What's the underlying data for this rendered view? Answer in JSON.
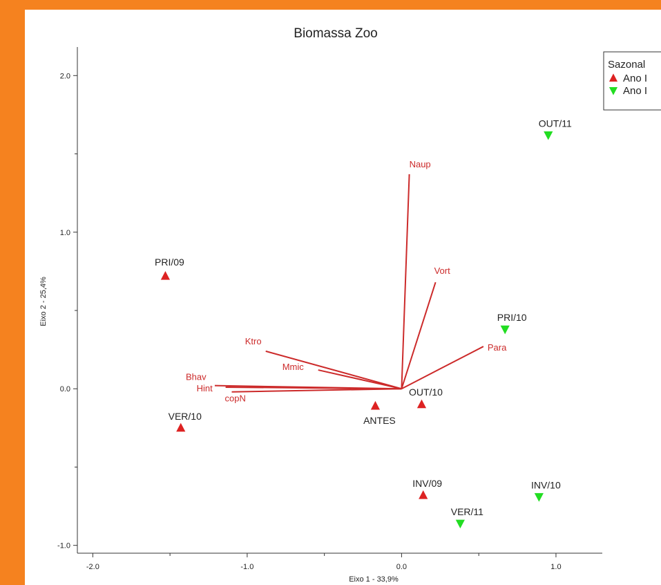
{
  "chart_data": {
    "type": "scatter",
    "title": "Biomassa Zoo",
    "xlabel": "Eixo 1 - 33,9%",
    "ylabel": "Eixo 2 - 25,4%",
    "xlim": [
      -2.1,
      1.3
    ],
    "ylim": [
      -1.05,
      2.2
    ],
    "x_ticks": [
      -2.0,
      -1.0,
      0.0,
      1.0
    ],
    "x_tick_labels": [
      "-2.0",
      "-1.0",
      "0.0",
      "1.0"
    ],
    "y_ticks": [
      -1.0,
      0.0,
      1.0,
      2.0
    ],
    "y_tick_labels": [
      "-1.0",
      "0.0",
      "1.0",
      "2.0"
    ],
    "colors": {
      "ano1": "#dd2222",
      "ano2": "#22dd22",
      "vector": "#cc2a2a",
      "background": "#f5821f"
    },
    "legend": {
      "title": "Sazonal",
      "placement": "top-right",
      "entries": [
        {
          "label": "Ano I",
          "marker": "triangle-up",
          "color": "#dd2222"
        },
        {
          "label": "Ano I",
          "marker": "triangle-down",
          "color": "#22dd22"
        }
      ]
    },
    "series": [
      {
        "name": "Ano I",
        "marker": "triangle-up",
        "color": "#dd2222",
        "points": [
          {
            "label": "PRI/09",
            "x": -1.53,
            "y": 0.72
          },
          {
            "label": "VER/10",
            "x": -1.43,
            "y": -0.25
          },
          {
            "label": "ANTES",
            "x": -0.17,
            "y": -0.11
          },
          {
            "label": "OUT/10",
            "x": 0.13,
            "y": -0.1
          },
          {
            "label": "INV/09",
            "x": 0.14,
            "y": -0.68
          }
        ]
      },
      {
        "name": "Ano I",
        "marker": "triangle-down",
        "color": "#22dd22",
        "points": [
          {
            "label": "OUT/11",
            "x": 0.95,
            "y": 1.62
          },
          {
            "label": "PRI/10",
            "x": 0.67,
            "y": 0.38
          },
          {
            "label": "INV/10",
            "x": 0.89,
            "y": -0.69
          },
          {
            "label": "VER/11",
            "x": 0.38,
            "y": -0.86
          }
        ]
      }
    ],
    "vectors": [
      {
        "label": "Naup",
        "x": 0.05,
        "y": 1.37
      },
      {
        "label": "Vort",
        "x": 0.22,
        "y": 0.68
      },
      {
        "label": "Para",
        "x": 0.53,
        "y": 0.27
      },
      {
        "label": "Ktro",
        "x": -0.88,
        "y": 0.24
      },
      {
        "label": "Mmic",
        "x": -0.54,
        "y": 0.12
      },
      {
        "label": "Bhav",
        "x": -1.21,
        "y": 0.02
      },
      {
        "label": "Hint",
        "x": -1.14,
        "y": 0.01
      },
      {
        "label": "copN",
        "x": -1.1,
        "y": -0.02
      }
    ]
  }
}
